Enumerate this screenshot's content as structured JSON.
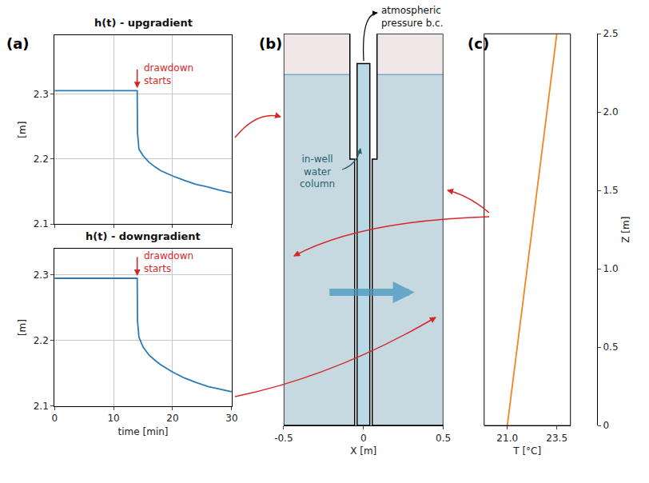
{
  "chart_data": [
    {
      "panel": "(a)",
      "type": "line",
      "title": "h(t) - upgradient",
      "x": [
        0,
        14,
        14.05,
        14.3,
        15,
        16,
        17,
        18,
        20,
        22,
        24,
        26,
        28,
        30
      ],
      "values": [
        2.305,
        2.305,
        2.24,
        2.215,
        2.205,
        2.195,
        2.188,
        2.182,
        2.174,
        2.167,
        2.161,
        2.157,
        2.152,
        2.148
      ],
      "color": "#2a7ab9",
      "ylabel": "[m]",
      "xlim": [
        0,
        30
      ],
      "xticks": [
        0,
        10,
        20,
        30
      ],
      "ylim": [
        2.1,
        2.39
      ],
      "yticks": [
        2.1,
        2.2,
        2.3
      ],
      "grid": true,
      "tick_labels": "y",
      "annotations": [
        {
          "text": "drawdown starts",
          "x": 14
        }
      ]
    },
    {
      "type": "line",
      "title": "h(t) - downgradient",
      "x": [
        0,
        14,
        14.05,
        14.3,
        15,
        16,
        17,
        18,
        20,
        22,
        24,
        26,
        28,
        30
      ],
      "values": [
        2.295,
        2.295,
        2.23,
        2.205,
        2.19,
        2.178,
        2.17,
        2.163,
        2.152,
        2.143,
        2.136,
        2.13,
        2.126,
        2.122
      ],
      "color": "#2a7ab9",
      "xlabel": "time [min]",
      "ylabel": "[m]",
      "xlim": [
        0,
        30
      ],
      "xticks": [
        0,
        10,
        20,
        30
      ],
      "ylim": [
        2.1,
        2.34
      ],
      "yticks": [
        2.1,
        2.2,
        2.3
      ],
      "grid": true,
      "annotations": [
        {
          "text": "drawdown starts",
          "x": 14
        }
      ]
    },
    {
      "panel": "(b)",
      "type": "diagram",
      "xlabel": "X [m]",
      "xlim": [
        -0.5,
        0.5
      ],
      "xticks": [
        -0.5,
        0,
        0.5
      ],
      "ylim": [
        0,
        2.5
      ],
      "tick_labels": "x",
      "water_level": 2.24,
      "well_column_top": 2.31,
      "casing_top": 1.7,
      "annotations": [
        {
          "text": "atmospheric pressure b.c."
        },
        {
          "text": "in-well water column"
        }
      ]
    },
    {
      "panel": "(c)",
      "type": "line",
      "x": [
        21.0,
        23.5
      ],
      "values": [
        0,
        2.5
      ],
      "color": "#f5841f",
      "xlabel": "T [°C]",
      "ylabel": "Z [m]",
      "xlim": [
        19.83,
        24.19
      ],
      "xticks": [
        {
          "value": 21,
          "label": "21.0"
        },
        {
          "value": 23.5,
          "label": "23.5"
        }
      ],
      "ylim": [
        0,
        2.5
      ],
      "yticks": [
        0,
        0.5,
        {
          "value": 1,
          "label": "1.0"
        },
        1.5,
        {
          "value": 2,
          "label": "2.0"
        },
        2.5
      ]
    }
  ]
}
